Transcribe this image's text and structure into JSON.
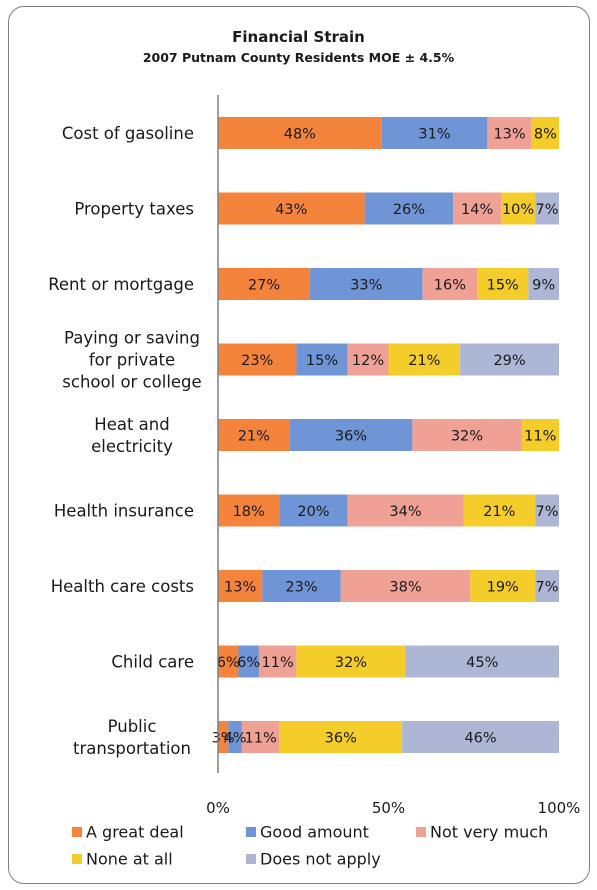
{
  "chart_data": {
    "type": "bar",
    "stacked": true,
    "orientation": "horizontal",
    "title": "Financial Strain",
    "subtitle": "2007 Putnam County Residents MOE ± 4.5%",
    "categories": [
      [
        "Cost of gasoline"
      ],
      [
        "Property taxes"
      ],
      [
        "Rent or mortgage"
      ],
      [
        "Paying or saving",
        "for private",
        "school or college"
      ],
      [
        "Heat and",
        "electricity"
      ],
      [
        "Health insurance"
      ],
      [
        "Health care costs"
      ],
      [
        "Child care"
      ],
      [
        "Public",
        "transportation"
      ]
    ],
    "series": [
      {
        "name": "A great deal",
        "color": "#f4843c",
        "values": [
          48,
          43,
          27,
          23,
          21,
          18,
          13,
          6,
          3
        ]
      },
      {
        "name": "Good amount",
        "color": "#6f95d6",
        "values": [
          31,
          26,
          33,
          15,
          36,
          20,
          23,
          6,
          4
        ]
      },
      {
        "name": "Not very much",
        "color": "#f0a196",
        "values": [
          13,
          14,
          16,
          12,
          32,
          34,
          38,
          11,
          11
        ]
      },
      {
        "name": "None at all",
        "color": "#f5cd2a",
        "values": [
          8,
          10,
          15,
          21,
          11,
          21,
          19,
          32,
          36
        ]
      },
      {
        "name": "Does not apply",
        "color": "#adb7d5",
        "values": [
          0,
          7,
          9,
          29,
          0,
          7,
          7,
          45,
          46
        ]
      }
    ],
    "data_labels": [
      [
        "48%",
        "31%",
        "13%",
        "8%",
        ""
      ],
      [
        "43%",
        "26%",
        "14%",
        "10%",
        "7%"
      ],
      [
        "27%",
        "33%",
        "16%",
        "15%",
        "9%"
      ],
      [
        "23%",
        "15%",
        "12%",
        "21%",
        "29%"
      ],
      [
        "21%",
        "36%",
        "32%",
        "11%",
        ""
      ],
      [
        "18%",
        "20%",
        "34%",
        "21%",
        "7%"
      ],
      [
        "13%",
        "23%",
        "38%",
        "19%",
        "7%"
      ],
      [
        "6%",
        "6%",
        "11%",
        "32%",
        "45%"
      ],
      [
        "3%",
        "4%",
        "11%",
        "36%",
        "46%"
      ]
    ],
    "xlim": [
      0,
      100
    ],
    "x_ticks": [
      "0%",
      "50%",
      "100%"
    ],
    "grid": false,
    "legend_position": "bottom"
  }
}
